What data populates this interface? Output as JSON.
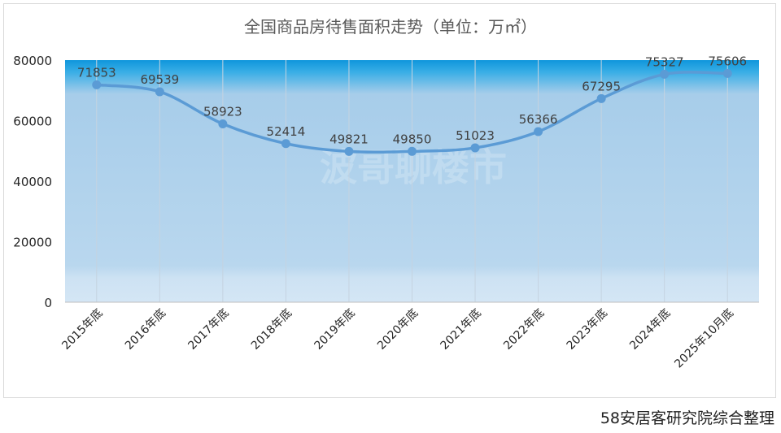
{
  "chart_data": {
    "type": "line",
    "title": "全国商品房待售面积走势（单位：万㎡）",
    "categories": [
      "2015年底",
      "2016年底",
      "2017年底",
      "2018年底",
      "2019年底",
      "2020年底",
      "2021年底",
      "2022年底",
      "2023年底",
      "2024年底",
      "2025年10月底"
    ],
    "series": [
      {
        "values": [
          71853,
          69539,
          58923,
          52414,
          49821,
          49850,
          51023,
          56366,
          67295,
          75327,
          75606
        ]
      }
    ],
    "ylim": [
      0,
      80000
    ],
    "yticks": [
      "0",
      "20000",
      "40000",
      "60000",
      "80000"
    ],
    "data_labels": [
      "71853",
      "69539",
      "58923",
      "52414",
      "49821",
      "49850",
      "51023",
      "56366",
      "67295",
      "75327",
      "75606"
    ],
    "grid": "vertical",
    "smooth": true,
    "line_color": "#5b9bd5",
    "watermark": "波哥聊楼市"
  },
  "source_note": "58安居客研究院综合整理"
}
